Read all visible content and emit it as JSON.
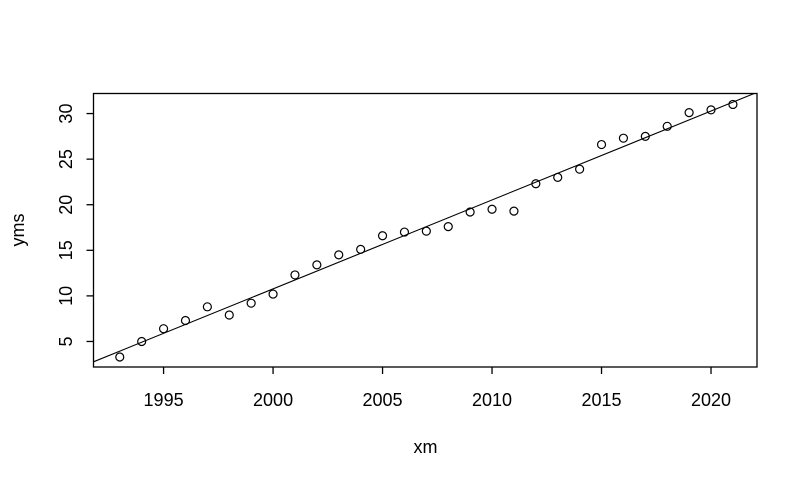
{
  "figure": {
    "background": "#ffffff",
    "foreground": "#000000"
  },
  "chart_data": {
    "type": "scatter",
    "title": "",
    "xlabel": "xm",
    "ylabel": "yms",
    "x": [
      1993,
      1994,
      1995,
      1996,
      1997,
      1998,
      1999,
      2000,
      2001,
      2002,
      2003,
      2004,
      2005,
      2006,
      2007,
      2008,
      2009,
      2010,
      2011,
      2012,
      2013,
      2014,
      2015,
      2016,
      2017,
      2018,
      2019,
      2020,
      2021
    ],
    "y": [
      3.3,
      5.0,
      6.4,
      7.3,
      8.8,
      7.9,
      9.2,
      10.2,
      12.3,
      13.4,
      14.5,
      15.1,
      16.6,
      17.0,
      17.1,
      17.6,
      19.2,
      19.5,
      19.3,
      22.3,
      23.0,
      23.9,
      26.6,
      27.3,
      27.5,
      28.6,
      30.1,
      30.4,
      31.0
    ],
    "xlim": [
      1991.8,
      2022.1
    ],
    "ylim": [
      2.2,
      32.2
    ],
    "xticks": [
      1995,
      2000,
      2005,
      2010,
      2015,
      2020
    ],
    "yticks": [
      5,
      10,
      15,
      20,
      25,
      30
    ],
    "y_tick_orientation": "rotated-90",
    "grid": false,
    "legend": "none",
    "marker": "open-circle",
    "fit_line": {
      "x1": 1991.8,
      "y1": 2.77,
      "x2": 2021.97,
      "y2": 32.2
    },
    "colors": {
      "points": "#000000",
      "line": "#000000",
      "axis": "#000000",
      "background": "#ffffff"
    }
  }
}
